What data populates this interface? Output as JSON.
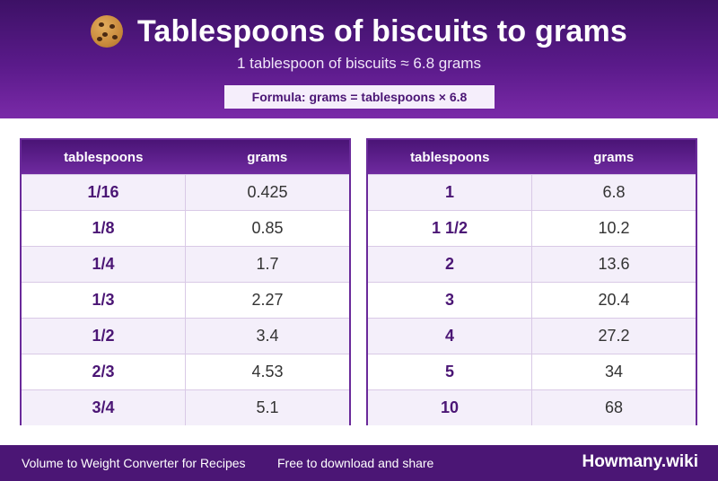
{
  "header": {
    "title": "Tablespoons of biscuits to grams",
    "subtitle": "1 tablespoon of biscuits ≈ 6.8 grams",
    "formula": "Formula: grams = tablespoons × 6.8",
    "icon": "cookie-icon"
  },
  "tables": [
    {
      "headers": [
        "tablespoons",
        "grams"
      ],
      "rows": [
        {
          "tbsp": "1/16",
          "grams": "0.425"
        },
        {
          "tbsp": "1/8",
          "grams": "0.85"
        },
        {
          "tbsp": "1/4",
          "grams": "1.7"
        },
        {
          "tbsp": "1/3",
          "grams": "2.27"
        },
        {
          "tbsp": "1/2",
          "grams": "3.4"
        },
        {
          "tbsp": "2/3",
          "grams": "4.53"
        },
        {
          "tbsp": "3/4",
          "grams": "5.1"
        }
      ]
    },
    {
      "headers": [
        "tablespoons",
        "grams"
      ],
      "rows": [
        {
          "tbsp": "1",
          "grams": "6.8"
        },
        {
          "tbsp": "1 1/2",
          "grams": "10.2"
        },
        {
          "tbsp": "2",
          "grams": "13.6"
        },
        {
          "tbsp": "3",
          "grams": "20.4"
        },
        {
          "tbsp": "4",
          "grams": "27.2"
        },
        {
          "tbsp": "5",
          "grams": "34"
        },
        {
          "tbsp": "10",
          "grams": "68"
        }
      ]
    }
  ],
  "footer": {
    "left_text": "Volume to Weight Converter for Recipes",
    "middle_text": "Free to download and share",
    "brand": "Howmany.wiki"
  },
  "colors": {
    "accent": "#4b1675",
    "header_light": "#7a2aa8"
  }
}
